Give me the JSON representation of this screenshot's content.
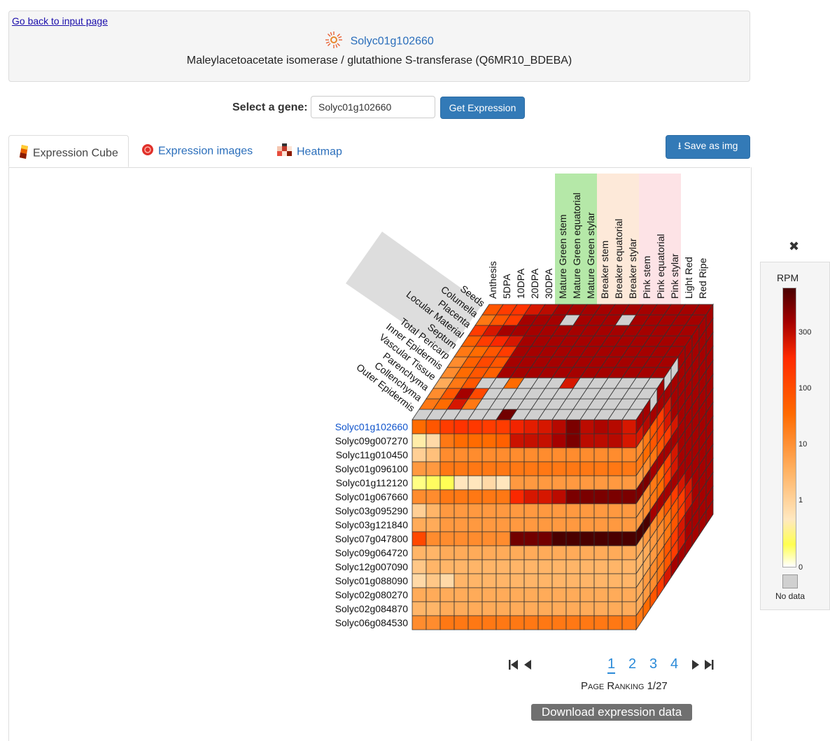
{
  "header": {
    "back_link": "Go back to input page",
    "gene_id": "Solyc01g102660",
    "gene_description": "Maleylacetoacetate isomerase / glutathione S-transferase (Q6MR10_BDEBA)"
  },
  "gene_select": {
    "label": "Select a gene:",
    "input_value": "Solyc01g102660",
    "button_label": "Get Expression"
  },
  "tabs": [
    {
      "label": "Expression Cube",
      "icon": "cube-icon",
      "active": true
    },
    {
      "label": "Expression images",
      "icon": "tomato-icon",
      "active": false
    },
    {
      "label": "Heatmap",
      "icon": "heatmap-icon",
      "active": false
    }
  ],
  "save_button": {
    "label": "Save as img",
    "icon": "download-icon"
  },
  "cube": {
    "stages": [
      "Anthesis",
      "5DPA",
      "10DPA",
      "20DPA",
      "30DPA",
      "Mature Green stem",
      "Mature Green equatorial",
      "Mature Green stylar",
      "Breaker stem",
      "Breaker equatorial",
      "Breaker stylar",
      "Pink stem",
      "Pink equatorial",
      "Pink stylar",
      "Light Red",
      "Red Ripe"
    ],
    "tissues": [
      "Outer Epidermis",
      "Collenchyma",
      "Parenchyma",
      "Vascular Tissue",
      "Inner Epidermis",
      "Total Pericarp",
      "Septum",
      "Locular Material",
      "Placenta",
      "Columella",
      "Seeds"
    ],
    "genes": [
      "Solyc01g102660",
      "Solyc09g007270",
      "Solyc11g010450",
      "Solyc01g096100",
      "Solyc01g112120",
      "Solyc01g067660",
      "Solyc03g095290",
      "Solyc03g121840",
      "Solyc07g047800",
      "Solyc09g064720",
      "Solyc12g007090",
      "Solyc01g088090",
      "Solyc02g080270",
      "Solyc02g084870",
      "Solyc06g084530"
    ],
    "front_rpm": [
      [
        40,
        60,
        100,
        120,
        110,
        100,
        100,
        160,
        180,
        200,
        260,
        380,
        250,
        280,
        260,
        200
      ],
      [
        1.5,
        3,
        30,
        40,
        40,
        40,
        50,
        220,
        230,
        230,
        300,
        380,
        250,
        250,
        260,
        200
      ],
      [
        4,
        6,
        20,
        20,
        20,
        20,
        20,
        20,
        20,
        20,
        20,
        20,
        20,
        20,
        20,
        20
      ],
      [
        15,
        15,
        30,
        30,
        30,
        30,
        30,
        30,
        30,
        30,
        30,
        30,
        30,
        30,
        30,
        30
      ],
      [
        0.3,
        0.6,
        0.5,
        2,
        2,
        3,
        2,
        15,
        15,
        15,
        15,
        15,
        15,
        15,
        15,
        15
      ],
      [
        20,
        20,
        30,
        30,
        30,
        30,
        30,
        150,
        200,
        200,
        250,
        380,
        380,
        380,
        380,
        380
      ],
      [
        4,
        8,
        15,
        15,
        15,
        15,
        15,
        15,
        15,
        15,
        15,
        15,
        15,
        15,
        15,
        15
      ],
      [
        10,
        10,
        15,
        15,
        15,
        15,
        15,
        15,
        15,
        15,
        15,
        15,
        15,
        15,
        15,
        15
      ],
      [
        80,
        20,
        20,
        20,
        20,
        20,
        20,
        400,
        400,
        400,
        500,
        500,
        500,
        500,
        500,
        500
      ],
      [
        8,
        8,
        10,
        10,
        10,
        10,
        10,
        10,
        10,
        10,
        10,
        10,
        10,
        10,
        10,
        10
      ],
      [
        5,
        8,
        8,
        8,
        8,
        8,
        8,
        8,
        8,
        8,
        8,
        8,
        8,
        8,
        8,
        8
      ],
      [
        3,
        5,
        3,
        8,
        8,
        8,
        8,
        8,
        8,
        8,
        8,
        8,
        8,
        8,
        8,
        8
      ],
      [
        10,
        10,
        10,
        10,
        10,
        10,
        10,
        10,
        10,
        10,
        10,
        10,
        10,
        10,
        10,
        10
      ],
      [
        8,
        8,
        10,
        10,
        10,
        10,
        10,
        10,
        10,
        10,
        10,
        10,
        10,
        10,
        10,
        10
      ],
      [
        20,
        20,
        30,
        30,
        30,
        30,
        30,
        30,
        30,
        30,
        30,
        30,
        30,
        30,
        30,
        30
      ]
    ],
    "top_rpm": [
      [
        null,
        null,
        null,
        null,
        null,
        null,
        400,
        null,
        null,
        null,
        null,
        null,
        null,
        null,
        null,
        null
      ],
      [
        30,
        40,
        200,
        30,
        null,
        null,
        null,
        null,
        null,
        null,
        null,
        null,
        null,
        null,
        null,
        null
      ],
      [
        20,
        60,
        300,
        80,
        null,
        null,
        null,
        null,
        null,
        null,
        null,
        null,
        null,
        null,
        null,
        null
      ],
      [
        10,
        30,
        60,
        null,
        null,
        40,
        null,
        null,
        null,
        200,
        null,
        null,
        null,
        null,
        null,
        null
      ],
      [
        20,
        40,
        60,
        50,
        300,
        300,
        300,
        300,
        300,
        300,
        300,
        300,
        300,
        300,
        300,
        300
      ],
      [
        20,
        50,
        80,
        60,
        300,
        300,
        300,
        300,
        300,
        300,
        300,
        300,
        300,
        300,
        300,
        300
      ],
      [
        30,
        40,
        60,
        100,
        300,
        300,
        300,
        300,
        300,
        300,
        300,
        300,
        300,
        300,
        300,
        300
      ],
      [
        50,
        100,
        150,
        200,
        300,
        300,
        300,
        300,
        300,
        300,
        300,
        300,
        300,
        300,
        300,
        300
      ],
      [
        100,
        200,
        300,
        300,
        300,
        300,
        300,
        300,
        300,
        300,
        300,
        300,
        300,
        300,
        300,
        300
      ],
      [
        30,
        60,
        100,
        300,
        300,
        300,
        null,
        300,
        300,
        300,
        null,
        300,
        300,
        300,
        300,
        300
      ],
      [
        60,
        100,
        120,
        200,
        250,
        300,
        300,
        300,
        300,
        300,
        300,
        300,
        300,
        300,
        300,
        300
      ]
    ],
    "side_rpm": [
      [
        300,
        300,
        null,
        300,
        null,
        null,
        300,
        300,
        300,
        300,
        300
      ],
      [
        200,
        260,
        300,
        300,
        300,
        300,
        300,
        300,
        300,
        300,
        300
      ],
      [
        20,
        30,
        60,
        100,
        200,
        300,
        300,
        300,
        300,
        300,
        300
      ],
      [
        30,
        40,
        60,
        100,
        200,
        300,
        300,
        300,
        300,
        300,
        300
      ],
      [
        15,
        20,
        30,
        60,
        100,
        200,
        300,
        300,
        300,
        300,
        300
      ],
      [
        380,
        380,
        300,
        300,
        300,
        300,
        300,
        300,
        300,
        300,
        300
      ],
      [
        15,
        20,
        30,
        40,
        100,
        200,
        300,
        300,
        300,
        300,
        300
      ],
      [
        15,
        20,
        30,
        40,
        100,
        200,
        300,
        300,
        300,
        300,
        300
      ],
      [
        500,
        500,
        300,
        300,
        300,
        300,
        300,
        300,
        300,
        300,
        300
      ],
      [
        10,
        15,
        20,
        30,
        60,
        100,
        200,
        300,
        300,
        300,
        300
      ],
      [
        8,
        10,
        15,
        20,
        30,
        60,
        100,
        200,
        300,
        300,
        300
      ],
      [
        8,
        10,
        15,
        20,
        30,
        60,
        100,
        200,
        300,
        300,
        300
      ],
      [
        10,
        15,
        20,
        30,
        60,
        100,
        200,
        300,
        300,
        300,
        300
      ],
      [
        10,
        15,
        20,
        30,
        60,
        100,
        200,
        300,
        300,
        300,
        300
      ],
      [
        30,
        40,
        60,
        100,
        200,
        300,
        300,
        300,
        300,
        300,
        300
      ]
    ],
    "stage_group_colors": {
      "mature_green": "#b5e8a8",
      "breaker": "#fde9d9",
      "pink": "#fde3e6"
    }
  },
  "pagination": {
    "pages": [
      "1",
      "2",
      "3",
      "4"
    ],
    "current": "1",
    "ranking_label": "Page Ranking 1/27"
  },
  "download_button": "Download expression data",
  "legend": {
    "title": "RPM",
    "ticks": [
      "300",
      "100",
      "10",
      "1",
      "0"
    ],
    "no_data_label": "No data",
    "no_data_color": "#d0d0d0"
  }
}
